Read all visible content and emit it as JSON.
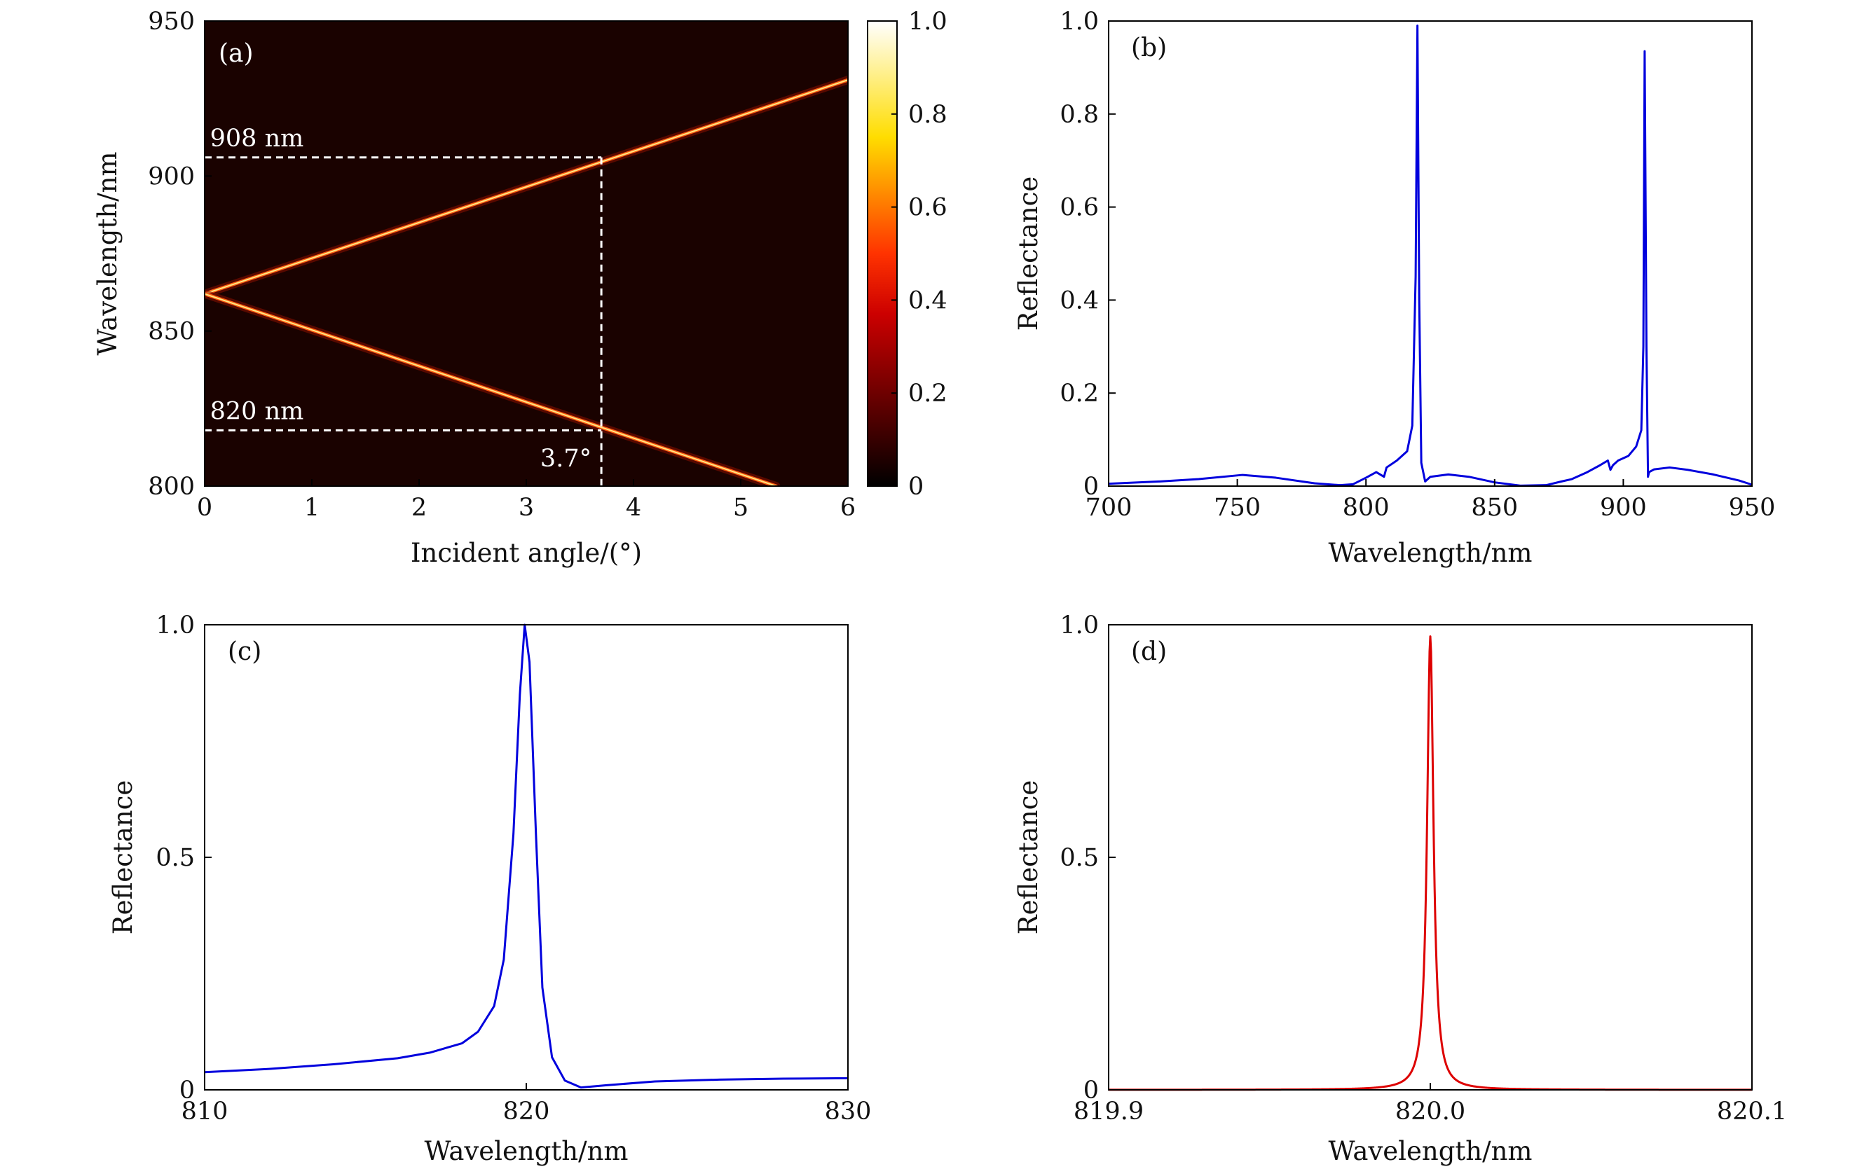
{
  "chart_data": [
    {
      "panel": "(a)",
      "type": "heatmap",
      "xlabel": "Incident angle/(°)",
      "ylabel": "Wavelength/nm",
      "xlim": [
        0,
        6
      ],
      "ylim": [
        800,
        950
      ],
      "xticks": [
        0,
        1,
        2,
        3,
        4,
        5,
        6
      ],
      "yticks": [
        800,
        850,
        900,
        950
      ],
      "colorbar": {
        "range": [
          0,
          1
        ],
        "ticks": [
          "1.0",
          "0.8",
          "0.6",
          "0.4",
          "0.2",
          "0"
        ],
        "colormap": "hot"
      },
      "bands": [
        {
          "name": "upper",
          "x": [
            0,
            6
          ],
          "y": [
            862,
            931
          ]
        },
        {
          "name": "lower",
          "x": [
            0,
            5.33
          ],
          "y": [
            862,
            800
          ]
        }
      ],
      "annotations": [
        {
          "text": "908 nm",
          "wavelength": 906
        },
        {
          "text": "820 nm",
          "wavelength": 818
        },
        {
          "text": "3.7°",
          "angle": 3.7
        }
      ]
    },
    {
      "panel": "(b)",
      "type": "line",
      "xlabel": "Wavelength/nm",
      "ylabel": "Reflectance",
      "xlim": [
        700,
        950
      ],
      "ylim": [
        0,
        1
      ],
      "xticks": [
        700,
        750,
        800,
        850,
        900,
        950
      ],
      "yticks": [
        "0",
        "0.2",
        "0.4",
        "0.6",
        "0.8",
        "1.0"
      ],
      "color": "#0000dd",
      "x": [
        700,
        720,
        735,
        752,
        765,
        780,
        790,
        795,
        800,
        804,
        807,
        808,
        812,
        816,
        818,
        819.3,
        820,
        820.7,
        821.5,
        823,
        825,
        832,
        840,
        850,
        860,
        870,
        876,
        880,
        886,
        891,
        894,
        895,
        896,
        898,
        902,
        905,
        907,
        907.8,
        908.3,
        909,
        909.6,
        910,
        912,
        918,
        925,
        935,
        945,
        950
      ],
      "y": [
        0.005,
        0.01,
        0.015,
        0.024,
        0.018,
        0.006,
        0.002,
        0.004,
        0.018,
        0.03,
        0.02,
        0.04,
        0.055,
        0.075,
        0.13,
        0.45,
        0.99,
        0.4,
        0.05,
        0.01,
        0.02,
        0.025,
        0.02,
        0.008,
        0.001,
        0.002,
        0.01,
        0.015,
        0.03,
        0.045,
        0.055,
        0.035,
        0.045,
        0.055,
        0.065,
        0.085,
        0.12,
        0.3,
        0.935,
        0.3,
        0.02,
        0.03,
        0.036,
        0.04,
        0.035,
        0.025,
        0.012,
        0.003
      ]
    },
    {
      "panel": "(c)",
      "type": "line",
      "xlabel": "Wavelength/nm",
      "ylabel": "Reflectance",
      "xlim": [
        810,
        830
      ],
      "ylim": [
        0,
        1
      ],
      "xticks": [
        810,
        820,
        830
      ],
      "yticks": [
        "0",
        "0.5",
        "1.0"
      ],
      "color": "#0000dd",
      "x": [
        810,
        812,
        814,
        816,
        817,
        818,
        818.5,
        819,
        819.3,
        819.6,
        819.8,
        819.95,
        820.1,
        820.3,
        820.5,
        820.8,
        821.2,
        821.7,
        822.5,
        824,
        826,
        828,
        830
      ],
      "y": [
        0.038,
        0.045,
        0.055,
        0.068,
        0.08,
        0.1,
        0.125,
        0.18,
        0.28,
        0.55,
        0.85,
        1.0,
        0.92,
        0.55,
        0.22,
        0.07,
        0.02,
        0.005,
        0.01,
        0.018,
        0.022,
        0.024,
        0.025
      ]
    },
    {
      "panel": "(d)",
      "type": "line",
      "xlabel": "Wavelength/nm",
      "ylabel": "Reflectance",
      "xlim": [
        819.9,
        820.1
      ],
      "ylim": [
        0,
        1
      ],
      "xticks": [
        "819.9",
        "820.0",
        "820.1"
      ],
      "yticks": [
        "0",
        "0.5",
        "1.0"
      ],
      "color": "#dd0000",
      "peak": {
        "x": 820.0,
        "y": 0.975,
        "hwhm": 0.0012
      }
    }
  ]
}
